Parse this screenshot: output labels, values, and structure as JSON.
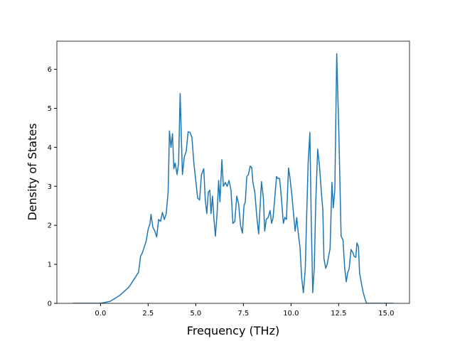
{
  "chart_data": {
    "type": "line",
    "xlabel": "Frequency (THz)",
    "ylabel": "Density of States",
    "x": [
      -1.45,
      -0.2,
      0.0,
      0.5,
      1.0,
      1.5,
      2.0,
      2.1,
      2.2,
      2.4,
      2.5,
      2.6,
      2.65,
      2.75,
      2.85,
      2.95,
      3.05,
      3.15,
      3.25,
      3.35,
      3.45,
      3.55,
      3.62,
      3.7,
      3.78,
      3.85,
      3.92,
      4.02,
      4.1,
      4.18,
      4.3,
      4.4,
      4.5,
      4.6,
      4.7,
      4.8,
      4.9,
      5.0,
      5.1,
      5.2,
      5.3,
      5.42,
      5.5,
      5.58,
      5.66,
      5.74,
      5.8,
      5.88,
      5.95,
      6.03,
      6.12,
      6.2,
      6.27,
      6.37,
      6.45,
      6.55,
      6.65,
      6.75,
      6.85,
      6.95,
      7.05,
      7.15,
      7.25,
      7.35,
      7.45,
      7.53,
      7.6,
      7.68,
      7.76,
      7.86,
      7.94,
      8.0,
      8.1,
      8.2,
      8.3,
      8.38,
      8.45,
      8.55,
      8.62,
      8.7,
      8.8,
      8.9,
      8.98,
      9.06,
      9.14,
      9.24,
      9.32,
      9.4,
      9.48,
      9.55,
      9.6,
      9.68,
      9.76,
      9.87,
      9.95,
      10.05,
      10.15,
      10.22,
      10.3,
      10.38,
      10.47,
      10.56,
      10.65,
      10.75,
      10.82,
      10.9,
      10.99,
      11.06,
      11.14,
      11.22,
      11.3,
      11.4,
      11.5,
      11.6,
      11.67,
      11.73,
      11.82,
      11.9,
      11.97,
      12.05,
      12.15,
      12.22,
      12.3,
      12.4,
      12.52,
      12.63,
      12.73,
      12.82,
      12.9,
      12.98,
      13.05,
      13.15,
      13.25,
      13.32,
      13.4,
      13.46,
      13.54,
      13.6,
      13.7,
      13.78,
      13.88,
      13.97,
      15.38
    ],
    "series": [
      {
        "color": "#1f77b4",
        "values": [
          0,
          0,
          0.0,
          0.05,
          0.2,
          0.42,
          0.8,
          1.2,
          1.3,
          1.6,
          1.9,
          2.05,
          2.28,
          1.95,
          1.85,
          1.7,
          2.15,
          2.1,
          2.33,
          2.15,
          2.3,
          2.85,
          4.42,
          4.0,
          4.35,
          3.45,
          3.6,
          3.3,
          3.6,
          5.38,
          3.3,
          3.75,
          3.9,
          4.4,
          4.38,
          4.25,
          3.6,
          3.15,
          2.7,
          2.65,
          3.3,
          3.45,
          2.65,
          2.3,
          2.85,
          2.9,
          2.3,
          2.75,
          2.2,
          1.72,
          2.3,
          3.15,
          2.6,
          3.68,
          3.0,
          3.1,
          3.0,
          3.15,
          2.9,
          2.05,
          2.1,
          2.75,
          2.55,
          2.0,
          1.8,
          2.5,
          2.6,
          3.25,
          3.3,
          3.52,
          3.48,
          3.1,
          2.85,
          2.25,
          1.78,
          2.5,
          3.12,
          2.7,
          1.85,
          2.15,
          2.2,
          2.38,
          2.05,
          2.2,
          2.65,
          3.25,
          3.2,
          3.2,
          2.8,
          2.35,
          2.05,
          2.2,
          2.15,
          3.47,
          3.2,
          2.75,
          2.2,
          1.85,
          2.2,
          1.8,
          1.45,
          0.65,
          0.27,
          0.9,
          2.2,
          3.6,
          4.38,
          2.2,
          0.27,
          0.9,
          2.6,
          3.95,
          3.5,
          2.8,
          2.4,
          1.15,
          0.9,
          1.0,
          1.2,
          1.4,
          3.1,
          2.45,
          2.9,
          6.4,
          4.2,
          1.72,
          1.62,
          0.9,
          0.55,
          0.8,
          0.88,
          1.38,
          1.3,
          1.2,
          1.18,
          1.55,
          1.45,
          0.78,
          0.5,
          0.3,
          0.12,
          0.0,
          0
        ]
      }
    ],
    "xlim": [
      -2.29,
      16.22
    ],
    "ylim": [
      0,
      6.72
    ],
    "xticks": [
      {
        "value": 0,
        "label": "0.0"
      },
      2.5,
      {
        "value": 5,
        "label": "5.0"
      },
      7.5,
      {
        "value": 10,
        "label": "10.0"
      },
      12.5,
      {
        "value": 15,
        "label": "15.0"
      }
    ],
    "yticks": [
      0,
      1,
      2,
      3,
      4,
      5,
      6
    ]
  }
}
